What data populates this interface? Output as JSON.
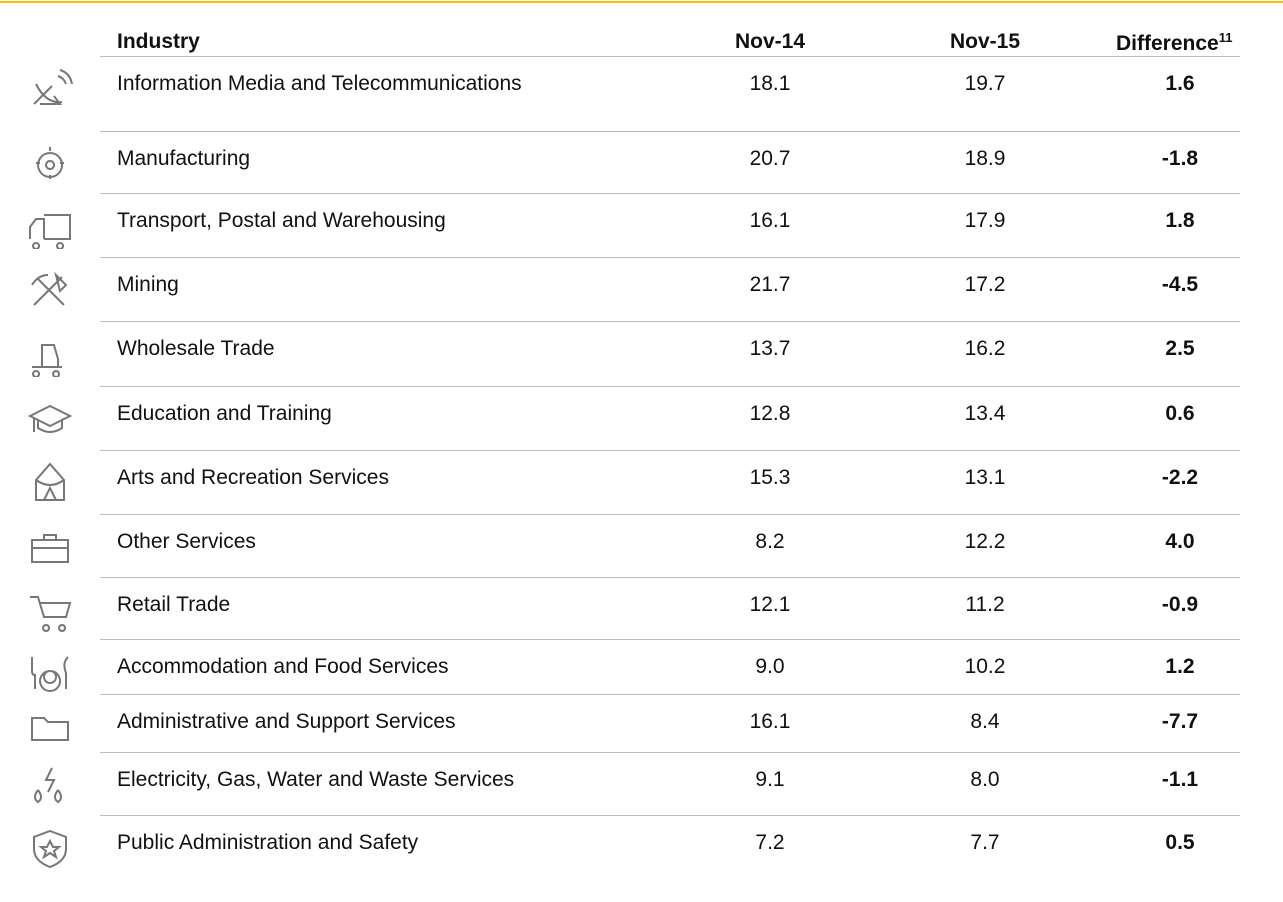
{
  "table": {
    "header": [
      "Industry",
      "Nov-14",
      "Nov-15",
      "Difference"
    ],
    "footnote": "11",
    "rows": [
      [
        "Information Media and Telecommunications",
        "18.1",
        "19.7",
        "1.6"
      ],
      [
        "Manufacturing",
        "20.7",
        "18.9",
        "-1.8"
      ],
      [
        "Transport, Postal and Warehousing",
        "16.1",
        "17.9",
        "1.8"
      ],
      [
        "Mining",
        "21.7",
        "17.2",
        "-4.5"
      ],
      [
        "Wholesale Trade",
        "13.7",
        "16.2",
        "2.5"
      ],
      [
        "Education and Training",
        "12.8",
        "13.4",
        "0.6"
      ],
      [
        "Arts and Recreation Services",
        "15.3",
        "13.1",
        "-2.2"
      ],
      [
        "Other Services",
        "8.2",
        "12.2",
        "4.0"
      ],
      [
        "Retail Trade",
        "12.1",
        "11.2",
        "-0.9"
      ],
      [
        "Accommodation and Food Services",
        "9.0",
        "10.2",
        "1.2"
      ],
      [
        "Administrative and Support Services",
        "16.1",
        "8.4",
        "-7.7"
      ],
      [
        "Electricity, Gas, Water and Waste Services",
        "9.1",
        "8.0",
        "-1.1"
      ],
      [
        "Public Administration and Safety",
        "7.2",
        "7.7",
        "0.5"
      ]
    ]
  }
}
